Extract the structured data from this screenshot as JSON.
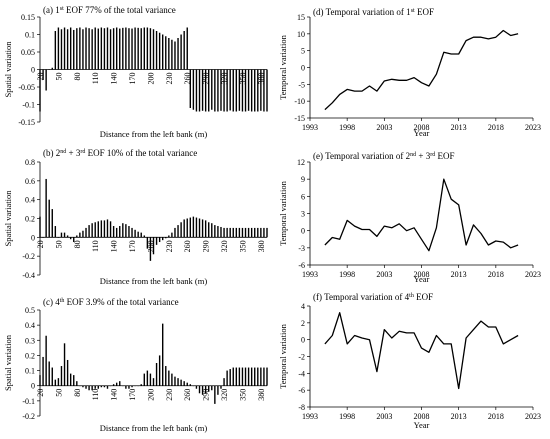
{
  "charts": [
    {
      "id": "a",
      "kind": "spatial",
      "title_pre": "(a) 1",
      "title_sup": "st",
      "title_post": " EOF 77% of the total variance",
      "xlabel": "Distance from the left bank (m)",
      "ylabel": "Spatial variation",
      "ylim": [
        -0.15,
        0.15
      ],
      "yticks": [
        "0.15",
        "0.1",
        "0.05",
        "0",
        "-0.05",
        "-0.1",
        "-0.15"
      ],
      "xticks": [
        "20",
        "50",
        "80",
        "110",
        "140",
        "170",
        "200",
        "230",
        "260",
        "290",
        "320",
        "350",
        "380"
      ]
    },
    {
      "id": "b",
      "kind": "spatial",
      "title_pre": "(b) 2",
      "title_sup": "nd",
      "title_post": " + 3",
      "title_sup2": "rd",
      "title_post2": " EOF 10% of the total variance",
      "xlabel": "Distance from the left bank (m)",
      "ylabel": "Spatial variation",
      "ylim": [
        -0.4,
        0.8
      ],
      "yticks": [
        "0.8",
        "0.6",
        "0.4",
        "0.2",
        "0",
        "-0.2",
        "-0.4"
      ],
      "xticks": [
        "20",
        "50",
        "80",
        "110",
        "140",
        "170",
        "200",
        "230",
        "260",
        "290",
        "320",
        "350",
        "380"
      ]
    },
    {
      "id": "c",
      "kind": "spatial",
      "title_pre": "(c) 4",
      "title_sup": "th",
      "title_post": " EOF 3.9% of the total variance",
      "xlabel": "Distance from the left bank (m)",
      "ylabel": "Spatial variation",
      "ylim": [
        -0.2,
        0.5
      ],
      "yticks": [
        "0.5",
        "0.4",
        "0.3",
        "0.2",
        "0.1",
        "0",
        "-0.1",
        "-0.2"
      ],
      "xticks": [
        "20",
        "50",
        "80",
        "110",
        "140",
        "170",
        "200",
        "230",
        "260",
        "290",
        "320",
        "350",
        "380"
      ]
    },
    {
      "id": "d",
      "kind": "temporal",
      "title_pre": "(d) Temporal variation of 1",
      "title_sup": "st",
      "title_post": " EOF",
      "xlabel": "Year",
      "ylabel": "Temporal variation",
      "ylim": [
        -15,
        15
      ],
      "yticks": [
        "15",
        "10",
        "5",
        "0",
        "-5",
        "-10",
        "-15"
      ],
      "xticks": [
        "1993",
        "1998",
        "2003",
        "2008",
        "2013",
        "2018",
        "2023"
      ]
    },
    {
      "id": "e",
      "kind": "temporal",
      "title_pre": "(e) Temporal variation of 2",
      "title_sup": "nd",
      "title_post": " + 3",
      "title_sup2": "rd",
      "title_post2": " EOF",
      "xlabel": "Year",
      "ylabel": "Temporal variation",
      "ylim": [
        -6,
        12
      ],
      "yticks": [
        "12",
        "9",
        "6",
        "3",
        "0",
        "-3",
        "-6"
      ],
      "xticks": [
        "1993",
        "1998",
        "2003",
        "2008",
        "2013",
        "2018",
        "2023"
      ]
    },
    {
      "id": "f",
      "kind": "temporal",
      "title_pre": "(f) Temporal variation of 4",
      "title_sup": "th",
      "title_post": " EOF",
      "xlabel": "Year",
      "ylabel": "Temporal variation",
      "ylim": [
        -8,
        4
      ],
      "yticks": [
        "4",
        "2",
        "0",
        "-2",
        "-4",
        "-6",
        "-8"
      ],
      "xticks": [
        "1993",
        "1998",
        "2003",
        "2008",
        "2013",
        "2018",
        "2023"
      ]
    }
  ],
  "chart_data": [
    {
      "type": "bar",
      "panel": "a",
      "x_start": 20,
      "x_step": 5,
      "ylim": [
        -0.15,
        0.15
      ],
      "xlim": [
        20,
        390
      ],
      "values": [
        -0.12,
        -0.03,
        -0.06,
        0.0,
        0.005,
        0.11,
        0.12,
        0.115,
        0.12,
        0.115,
        0.12,
        0.113,
        0.118,
        0.12,
        0.115,
        0.12,
        0.118,
        0.115,
        0.12,
        0.117,
        0.12,
        0.118,
        0.12,
        0.115,
        0.118,
        0.12,
        0.117,
        0.119,
        0.12,
        0.118,
        0.117,
        0.12,
        0.119,
        0.118,
        0.12,
        0.12,
        0.118,
        0.115,
        0.11,
        0.105,
        0.1,
        0.095,
        0.09,
        0.085,
        0.08,
        0.09,
        0.1,
        0.11,
        0.12,
        -0.11,
        -0.115,
        -0.12,
        -0.12,
        -0.118,
        -0.12,
        -0.12,
        -0.115,
        -0.12,
        -0.12,
        -0.118,
        -0.12,
        -0.12,
        -0.117,
        -0.12,
        -0.12,
        -0.118,
        -0.12,
        -0.12,
        -0.118,
        -0.12,
        -0.12,
        -0.12,
        -0.118,
        -0.12,
        -0.12
      ]
    },
    {
      "type": "bar",
      "panel": "b",
      "x_start": 20,
      "x_step": 5,
      "ylim": [
        -0.4,
        0.8
      ],
      "xlim": [
        20,
        390
      ],
      "values": [
        0.22,
        0.0,
        0.62,
        0.4,
        0.3,
        0.12,
        0.0,
        0.05,
        0.05,
        0.02,
        -0.02,
        -0.05,
        0.02,
        0.05,
        0.07,
        0.1,
        0.13,
        0.15,
        0.16,
        0.17,
        0.18,
        0.18,
        0.19,
        0.17,
        0.12,
        0.1,
        0.12,
        0.15,
        0.14,
        0.12,
        0.1,
        0.08,
        0.06,
        0.05,
        0.02,
        -0.12,
        -0.25,
        -0.18,
        -0.08,
        -0.05,
        -0.03,
        -0.01,
        0.02,
        0.05,
        0.1,
        0.13,
        0.16,
        0.19,
        0.2,
        0.21,
        0.22,
        0.21,
        0.2,
        0.19,
        0.18,
        0.16,
        0.15,
        0.13,
        0.12,
        0.11,
        0.1,
        0.1,
        0.1,
        0.1,
        0.1,
        0.1,
        0.1,
        0.1,
        0.1,
        0.1,
        0.1,
        0.1,
        0.1,
        0.1,
        0.1
      ]
    },
    {
      "type": "bar",
      "panel": "c",
      "x_start": 20,
      "x_step": 5,
      "ylim": [
        -0.2,
        0.5
      ],
      "xlim": [
        20,
        390
      ],
      "values": [
        0.07,
        0.19,
        0.33,
        0.16,
        0.12,
        0.04,
        0.05,
        0.13,
        0.28,
        0.17,
        0.08,
        0.07,
        0.03,
        0.0,
        -0.01,
        -0.02,
        -0.03,
        -0.03,
        -0.02,
        -0.02,
        -0.01,
        -0.01,
        -0.02,
        0.0,
        0.01,
        0.02,
        0.03,
        0.0,
        -0.02,
        -0.02,
        -0.01,
        0.0,
        0.0,
        0.01,
        0.08,
        0.1,
        0.08,
        0.05,
        0.15,
        0.2,
        0.41,
        0.13,
        0.1,
        0.08,
        0.06,
        0.05,
        0.04,
        0.03,
        0.02,
        0.01,
        0.0,
        -0.02,
        -0.05,
        -0.06,
        -0.05,
        -0.04,
        -0.03,
        -0.12,
        -0.06,
        -0.02,
        0.05,
        0.1,
        0.11,
        0.12,
        0.12,
        0.12,
        0.12,
        0.12,
        0.12,
        0.12,
        0.12,
        0.12,
        0.12,
        0.12,
        0.12
      ]
    },
    {
      "type": "line",
      "panel": "d",
      "xlim": [
        1993,
        2023
      ],
      "ylim": [
        -15,
        15
      ],
      "x": [
        1995,
        1996,
        1997,
        1998,
        1999,
        2000,
        2001,
        2002,
        2003,
        2004,
        2005,
        2006,
        2007,
        2008,
        2009,
        2010,
        2011,
        2012,
        2013,
        2014,
        2015,
        2016,
        2017,
        2018,
        2019,
        2020,
        2021
      ],
      "values": [
        -12.5,
        -10.5,
        -8.0,
        -6.5,
        -7.0,
        -7.0,
        -5.5,
        -7.0,
        -4.0,
        -3.5,
        -3.8,
        -3.8,
        -3.0,
        -4.5,
        -5.5,
        -2.0,
        4.5,
        4.0,
        4.0,
        8.0,
        9.0,
        9.0,
        8.5,
        9.0,
        11.0,
        9.5,
        10.0
      ]
    },
    {
      "type": "line",
      "panel": "e",
      "xlim": [
        1993,
        2023
      ],
      "ylim": [
        -6,
        12
      ],
      "x": [
        1995,
        1996,
        1997,
        1998,
        1999,
        2000,
        2001,
        2002,
        2003,
        2004,
        2005,
        2006,
        2007,
        2008,
        2009,
        2010,
        2011,
        2012,
        2013,
        2014,
        2015,
        2016,
        2017,
        2018,
        2019,
        2020,
        2021
      ],
      "values": [
        -2.5,
        -1.2,
        -1.5,
        1.8,
        0.8,
        0.2,
        0.2,
        -1.0,
        0.8,
        0.5,
        1.2,
        0.0,
        0.5,
        -1.5,
        -3.5,
        0.5,
        9.0,
        5.5,
        4.5,
        -2.5,
        1.0,
        -0.5,
        -2.5,
        -1.8,
        -2.0,
        -3.0,
        -2.5
      ]
    },
    {
      "type": "line",
      "panel": "f",
      "xlim": [
        1993,
        2023
      ],
      "ylim": [
        -8,
        4
      ],
      "x": [
        1995,
        1996,
        1997,
        1998,
        1999,
        2000,
        2001,
        2002,
        2003,
        2004,
        2005,
        2006,
        2007,
        2008,
        2009,
        2010,
        2011,
        2012,
        2013,
        2014,
        2015,
        2016,
        2017,
        2018,
        2019,
        2020,
        2021
      ],
      "values": [
        -0.5,
        0.5,
        3.2,
        -0.5,
        0.5,
        0.2,
        0.0,
        -3.8,
        1.2,
        0.2,
        1.0,
        0.8,
        0.8,
        -1.0,
        -1.5,
        0.5,
        -0.5,
        -0.5,
        -5.8,
        0.2,
        1.2,
        2.2,
        1.5,
        1.5,
        -0.5,
        0.0,
        0.5
      ]
    }
  ]
}
